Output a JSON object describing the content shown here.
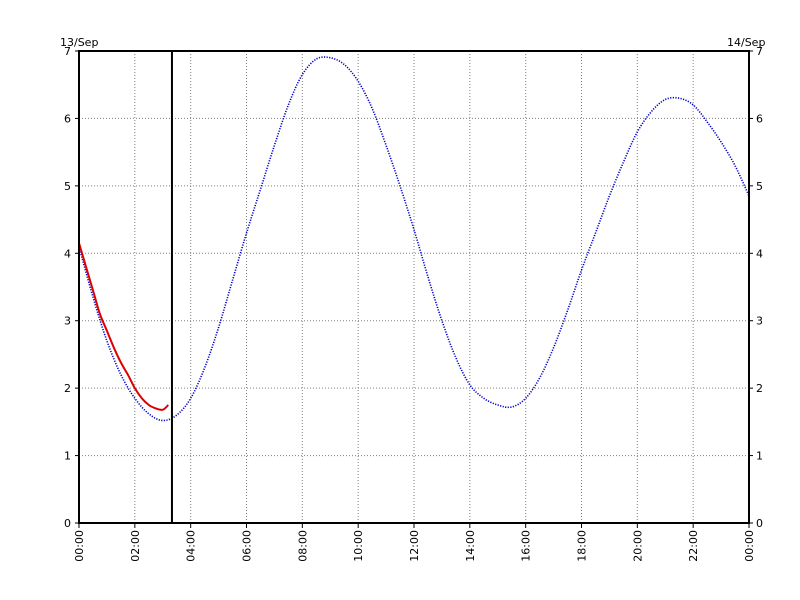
{
  "chart_data": {
    "type": "line",
    "title": "",
    "xlabel": "",
    "ylabel": "",
    "date_left": "13/Sep",
    "date_right": "14/Sep",
    "x_unit": "hours",
    "xlim": [
      0,
      24
    ],
    "ylim": [
      0,
      7
    ],
    "y_ticks": [
      0,
      1,
      2,
      3,
      4,
      5,
      6,
      7
    ],
    "x_ticks": [
      {
        "x": 0,
        "label": "00:00"
      },
      {
        "x": 2,
        "label": "02:00"
      },
      {
        "x": 4,
        "label": "04:00"
      },
      {
        "x": 6,
        "label": "06:00"
      },
      {
        "x": 8,
        "label": "08:00"
      },
      {
        "x": 10,
        "label": "10:00"
      },
      {
        "x": 12,
        "label": "12:00"
      },
      {
        "x": 14,
        "label": "14:00"
      },
      {
        "x": 16,
        "label": "16:00"
      },
      {
        "x": 18,
        "label": "18:00"
      },
      {
        "x": 20,
        "label": "20:00"
      },
      {
        "x": 22,
        "label": "22:00"
      },
      {
        "x": 24,
        "label": "00:00"
      }
    ],
    "grid": true,
    "now_marker_x": 3.33,
    "series": [
      {
        "color": "#0000cc",
        "style": "dotted",
        "x": [
          0,
          0.5,
          1,
          1.5,
          2,
          2.5,
          3,
          3.5,
          4,
          4.5,
          5,
          5.5,
          6,
          6.5,
          7,
          7.5,
          8,
          8.5,
          9,
          9.5,
          10,
          10.5,
          11,
          11.5,
          12,
          12.5,
          13,
          13.5,
          14,
          14.5,
          15,
          15.5,
          16,
          16.5,
          17,
          17.5,
          18,
          18.5,
          19,
          19.5,
          20,
          20.5,
          21,
          21.5,
          22,
          22.5,
          23,
          23.5,
          24
        ],
        "values": [
          4.1,
          3.35,
          2.7,
          2.2,
          1.85,
          1.62,
          1.52,
          1.6,
          1.85,
          2.3,
          2.9,
          3.6,
          4.3,
          4.95,
          5.6,
          6.2,
          6.65,
          6.88,
          6.9,
          6.8,
          6.55,
          6.15,
          5.6,
          5.0,
          4.35,
          3.65,
          3.0,
          2.45,
          2.05,
          1.85,
          1.75,
          1.72,
          1.85,
          2.15,
          2.6,
          3.15,
          3.75,
          4.3,
          4.85,
          5.35,
          5.8,
          6.1,
          6.28,
          6.3,
          6.2,
          5.95,
          5.65,
          5.3,
          4.85
        ]
      },
      {
        "color": "#dd0000",
        "style": "solid",
        "x": [
          0,
          0.25,
          0.5,
          0.75,
          1,
          1.25,
          1.5,
          1.75,
          2,
          2.25,
          2.5,
          2.75,
          3,
          3.2
        ],
        "values": [
          4.15,
          3.8,
          3.45,
          3.1,
          2.85,
          2.6,
          2.38,
          2.2,
          2.0,
          1.85,
          1.75,
          1.7,
          1.68,
          1.75
        ]
      }
    ]
  }
}
